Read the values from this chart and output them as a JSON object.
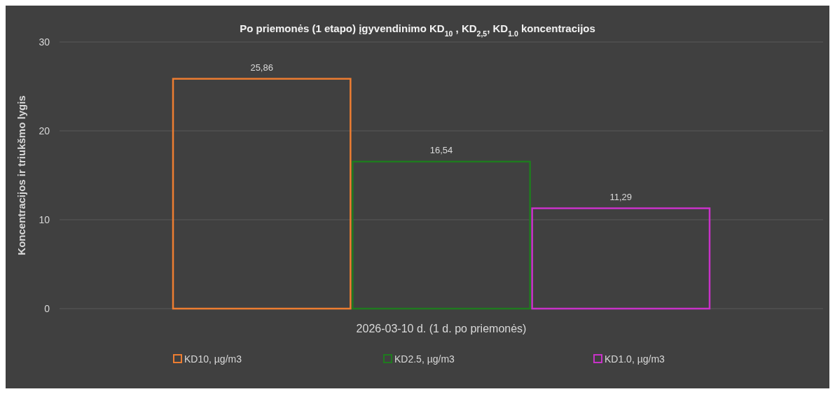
{
  "chart_data": {
    "type": "bar",
    "title": "Po priemonės (1 etapo) įgyvendinimo KD$_{10}$ , KD$_{2,5}$, KD$_{1.0}$  koncentracijos",
    "ylabel": "Koncentracijos ir triukšmo lygis",
    "categories": [
      "2026-03-10 d. (1 d. po priemonės)"
    ],
    "series": [
      {
        "name": "KD10, µg/m3",
        "color": "#ed7d31",
        "values": [
          25.86
        ],
        "value_labels": [
          "25,86"
        ]
      },
      {
        "name": "KD2.5, µg/m3",
        "color": "#1f7a1f",
        "values": [
          16.54
        ],
        "value_labels": [
          "16,54"
        ]
      },
      {
        "name": "KD1.0, µg/m3",
        "color": "#c832c8",
        "values": [
          11.29
        ],
        "value_labels": [
          "11,29"
        ]
      }
    ],
    "ylim": [
      0,
      30
    ],
    "yticks": [
      0,
      10,
      20,
      30
    ],
    "grid": "y",
    "legend": "bottom"
  }
}
